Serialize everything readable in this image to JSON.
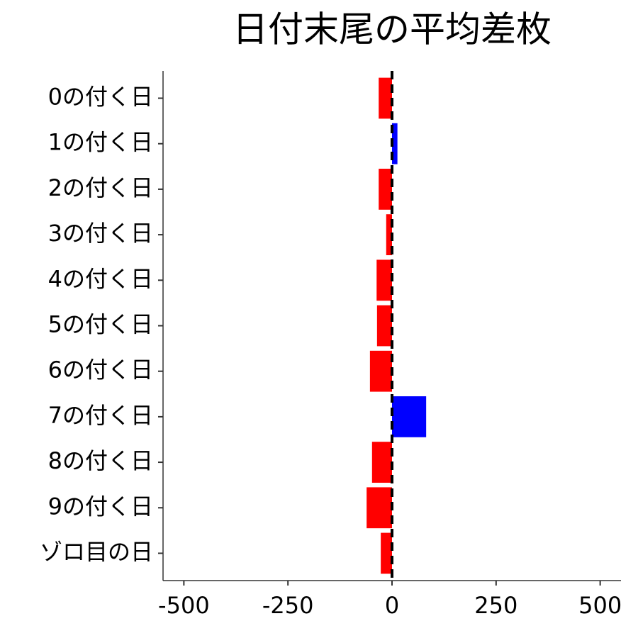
{
  "chart_data": {
    "type": "barh",
    "title": "日付末尾の平均差枚",
    "categories": [
      "0の付く日",
      "1の付く日",
      "2の付く日",
      "3の付く日",
      "4の付く日",
      "5の付く日",
      "6の付く日",
      "7の付く日",
      "8の付く日",
      "9の付く日",
      "ゾロ目の日"
    ],
    "values": [
      -32,
      13,
      -32,
      -14,
      -37,
      -36,
      -53,
      82,
      -48,
      -61,
      -27
    ],
    "colors": [
      "#ff0000",
      "#0000ff",
      "#ff0000",
      "#ff0000",
      "#ff0000",
      "#ff0000",
      "#ff0000",
      "#0000ff",
      "#ff0000",
      "#ff0000",
      "#ff0000"
    ],
    "xlim": [
      -550,
      550
    ],
    "xticks": [
      -500,
      -250,
      0,
      250,
      500
    ],
    "reference_line": 0
  }
}
